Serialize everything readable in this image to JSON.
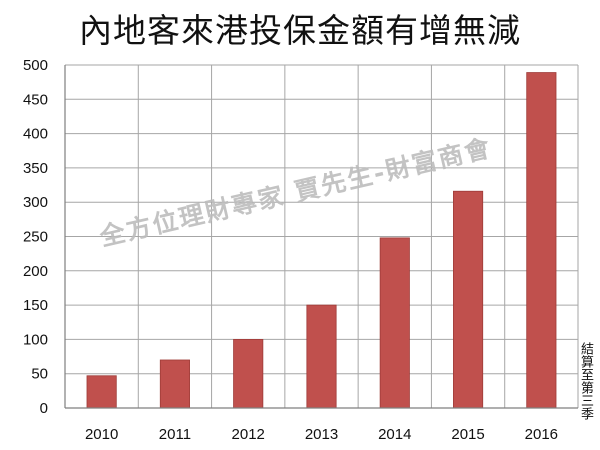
{
  "chart_data": {
    "type": "bar",
    "title": "內地客來港投保金額有增無減",
    "xlabel": "",
    "ylabel": "",
    "categories": [
      "2010",
      "2011",
      "2012",
      "2013",
      "2014",
      "2015",
      "2016"
    ],
    "values": [
      47,
      70,
      100,
      150,
      248,
      316,
      489
    ],
    "ylim": [
      0,
      500
    ],
    "yticks": [
      "0",
      "50",
      "100",
      "150",
      "200",
      "250",
      "300",
      "350",
      "400",
      "450",
      "500"
    ],
    "grid": true,
    "bar_color": "#c0504d",
    "annotation": "結算至第三季"
  },
  "watermark": "全方位理財專家 賈先生-財富商會"
}
